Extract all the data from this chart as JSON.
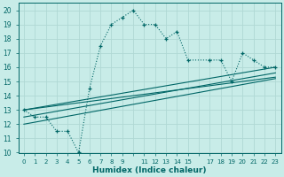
{
  "xlabel": "Humidex (Indice chaleur)",
  "bg_color": "#c8ece8",
  "grid_color": "#b0d8d4",
  "line_color": "#006666",
  "xlim": [
    -0.5,
    23.5
  ],
  "ylim": [
    10,
    20.5
  ],
  "xticks": [
    0,
    1,
    2,
    3,
    4,
    5,
    6,
    7,
    8,
    9,
    11,
    12,
    13,
    14,
    15,
    17,
    18,
    19,
    20,
    21,
    22,
    23
  ],
  "yticks": [
    10,
    11,
    12,
    13,
    14,
    15,
    16,
    17,
    18,
    19,
    20
  ],
  "main_x": [
    0,
    1,
    2,
    3,
    4,
    5,
    6,
    7,
    8,
    9,
    10,
    11,
    12,
    13,
    14,
    15,
    17,
    18,
    19,
    20,
    21,
    22,
    23
  ],
  "main_y": [
    13,
    12.5,
    12.5,
    11.5,
    11.5,
    10,
    14.5,
    17.5,
    19,
    19.5,
    20,
    19,
    19,
    18,
    18.5,
    16.5,
    16.5,
    16.5,
    15,
    17,
    16.5,
    16,
    16
  ],
  "trend1_x": [
    0,
    23
  ],
  "trend1_y": [
    13,
    16.0
  ],
  "trend2_x": [
    0,
    23
  ],
  "trend2_y": [
    12.0,
    15.2
  ],
  "trend3_x": [
    0,
    23
  ],
  "trend3_y": [
    12.5,
    15.6
  ],
  "trend4_x": [
    0,
    23
  ],
  "trend4_y": [
    13.0,
    15.3
  ]
}
